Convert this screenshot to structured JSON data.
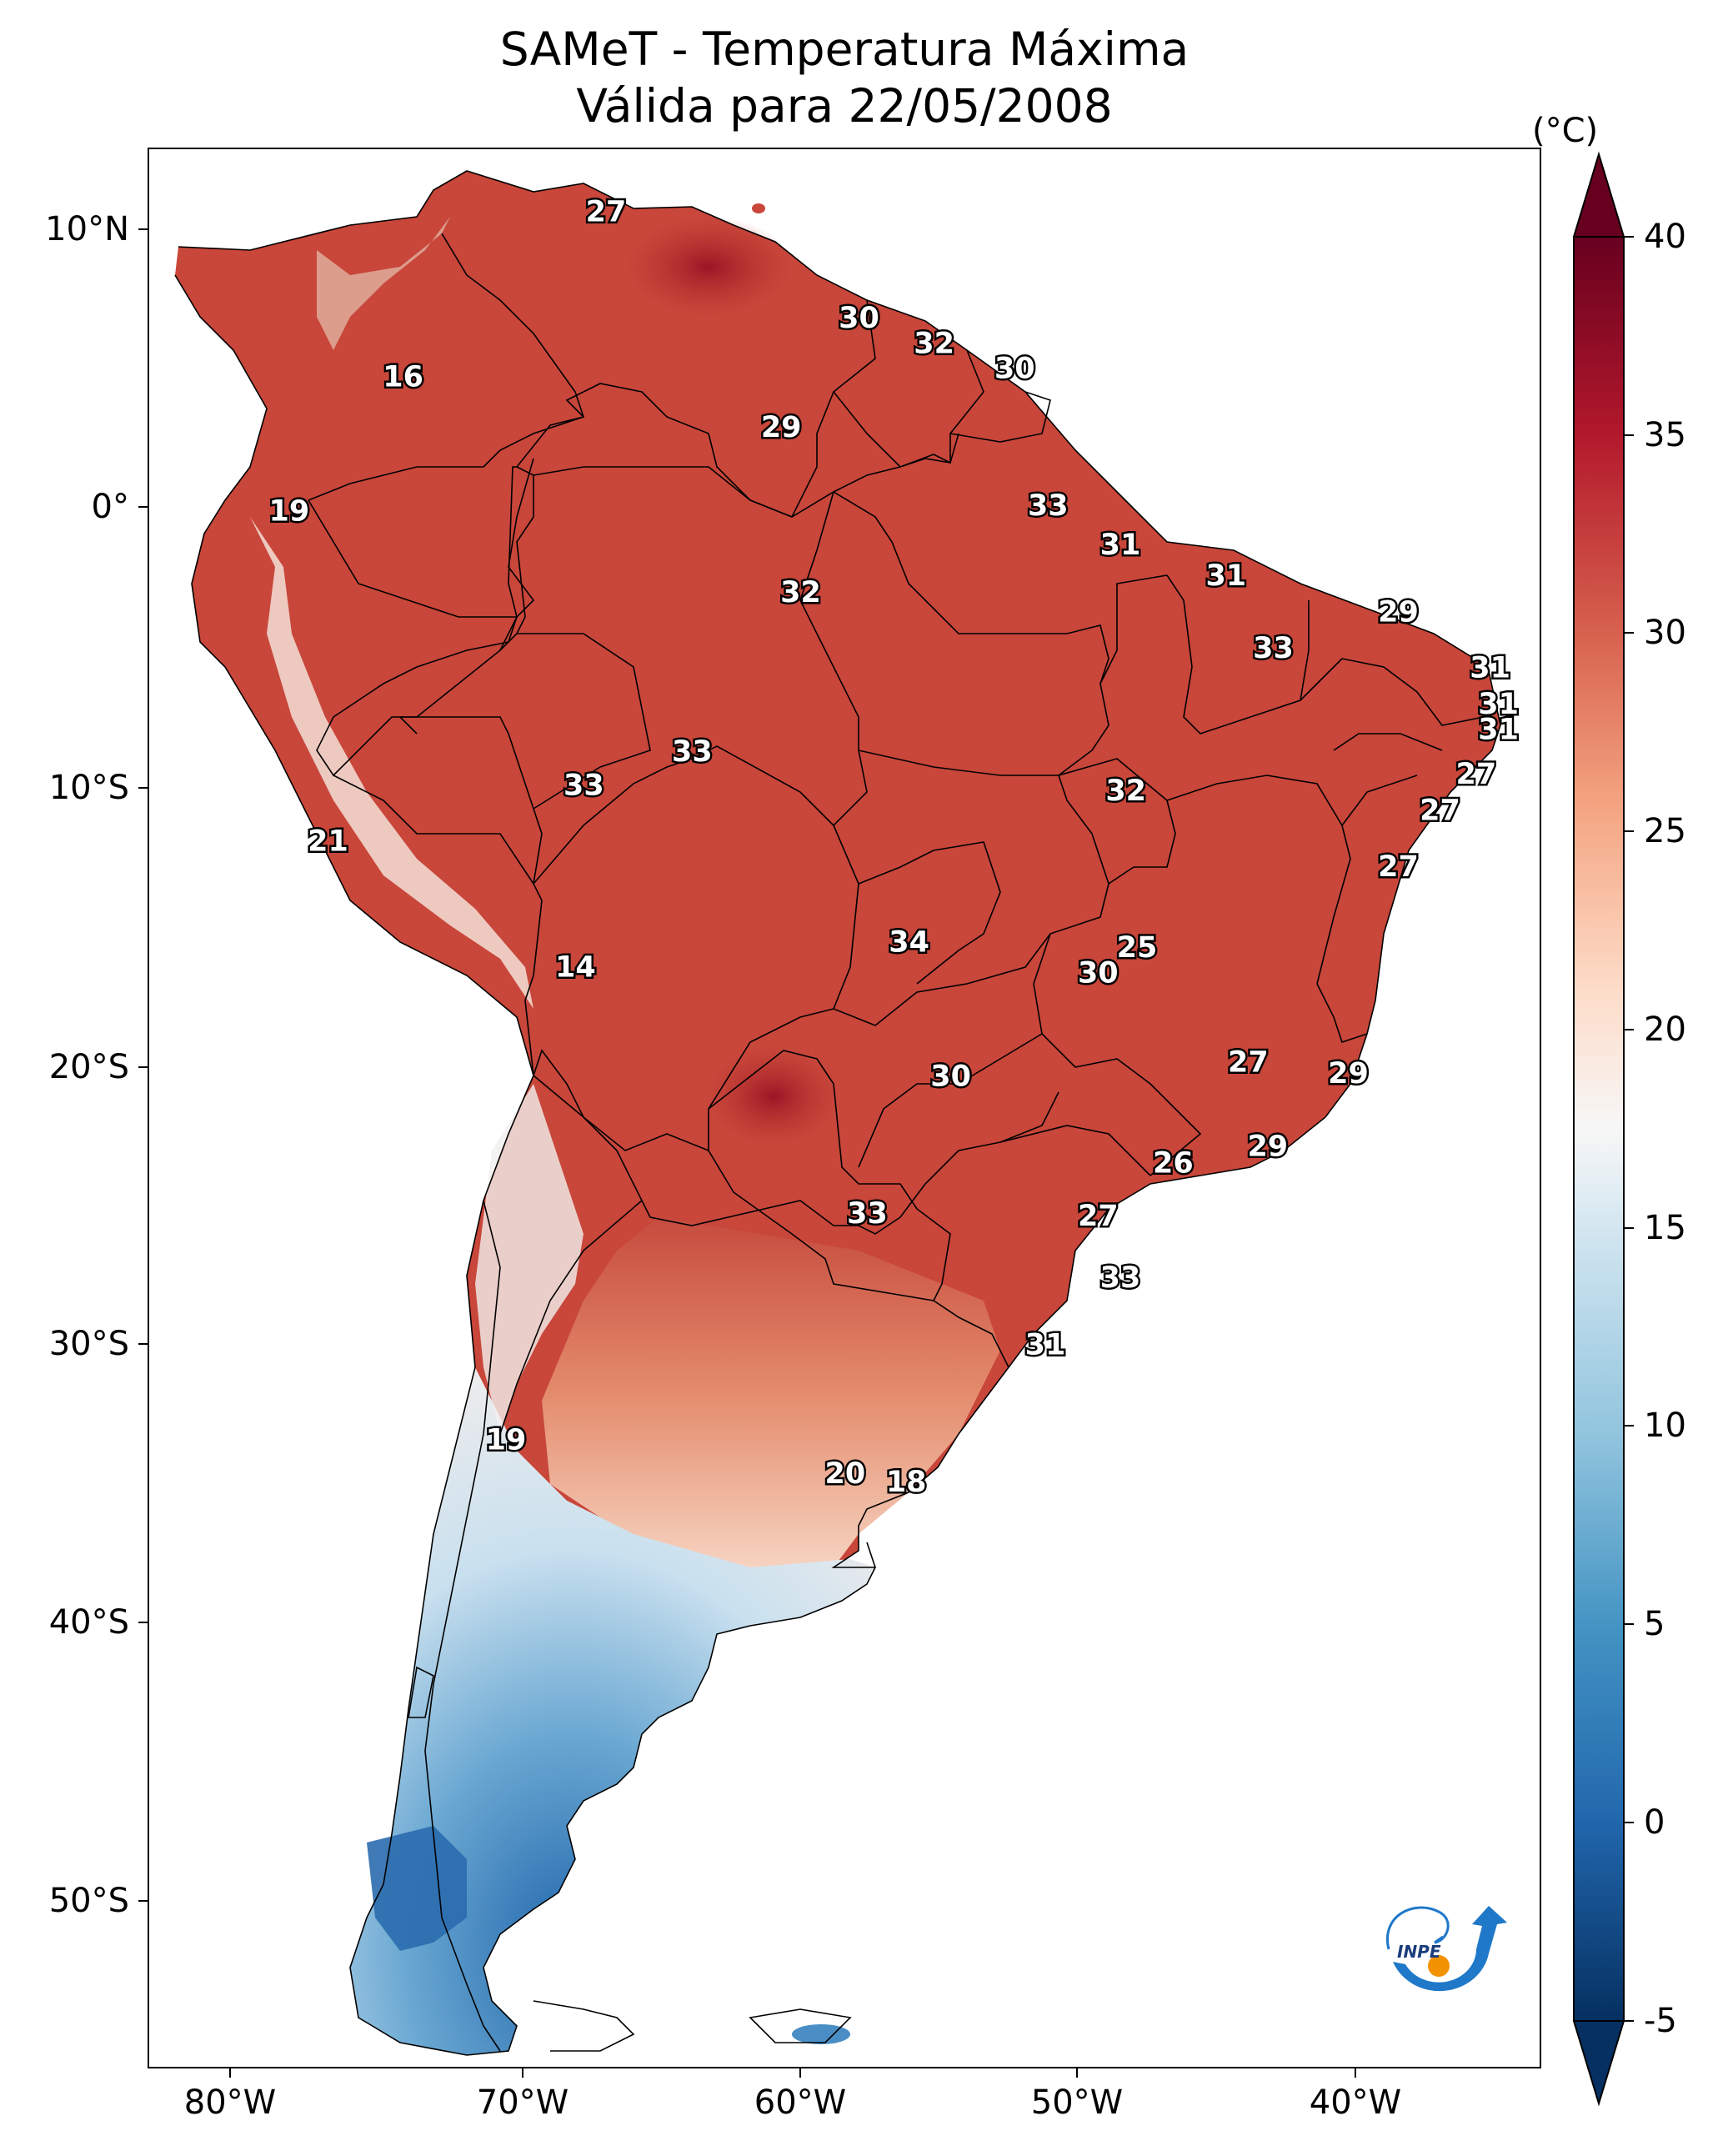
{
  "title": {
    "line1": "SAMeT - Temperatura Máxima",
    "line2": "Válida para 22/05/2008"
  },
  "latitude_ticks": [
    "10°N",
    "0°",
    "10°S",
    "20°S",
    "30°S",
    "40°S",
    "50°S"
  ],
  "longitude_ticks": [
    "80°W",
    "70°W",
    "60°W",
    "50°W",
    "40°W"
  ],
  "colorbar": {
    "unit": "(°C)",
    "ticks": [
      "40",
      "35",
      "30",
      "25",
      "20",
      "15",
      "10",
      "5",
      "0",
      "-5"
    ],
    "range": [
      -5,
      40
    ],
    "extend": "both",
    "colormap": "RdBu_r",
    "colors": {
      "hot": "#67001f",
      "warm": "#b2182b",
      "mild": "#f4a582",
      "neutral": "#f7f7f7",
      "cool": "#92c5de",
      "cold": "#2166ac",
      "coldest": "#053061"
    }
  },
  "station_labels": [
    {
      "value": "27",
      "lon": -67.0,
      "lat": 10.5
    },
    {
      "value": "16",
      "lon": -74.3,
      "lat": 4.6
    },
    {
      "value": "19",
      "lon": -78.4,
      "lat": -0.2
    },
    {
      "value": "30",
      "lon": -57.9,
      "lat": 6.7
    },
    {
      "value": "32",
      "lon": -55.2,
      "lat": 5.8
    },
    {
      "value": "30",
      "lon": -52.3,
      "lat": 4.9
    },
    {
      "value": "29",
      "lon": -60.7,
      "lat": 2.8
    },
    {
      "value": "33",
      "lon": -51.1,
      "lat": 0.0
    },
    {
      "value": "31",
      "lon": -48.5,
      "lat": -1.4
    },
    {
      "value": "31",
      "lon": -44.7,
      "lat": -2.5
    },
    {
      "value": "32",
      "lon": -60.0,
      "lat": -3.1
    },
    {
      "value": "29",
      "lon": -38.5,
      "lat": -3.8
    },
    {
      "value": "33",
      "lon": -43.0,
      "lat": -5.1
    },
    {
      "value": "31",
      "lon": -35.2,
      "lat": -5.8
    },
    {
      "value": "31",
      "lon": -34.9,
      "lat": -7.1
    },
    {
      "value": "31",
      "lon": -34.9,
      "lat": -8.0
    },
    {
      "value": "27",
      "lon": -35.7,
      "lat": -9.6
    },
    {
      "value": "27",
      "lon": -37.0,
      "lat": -10.9
    },
    {
      "value": "27",
      "lon": -38.5,
      "lat": -12.9
    },
    {
      "value": "33",
      "lon": -63.9,
      "lat": -8.8
    },
    {
      "value": "33",
      "lon": -67.8,
      "lat": -10.0
    },
    {
      "value": "32",
      "lon": -48.3,
      "lat": -10.2
    },
    {
      "value": "21",
      "lon": -77.0,
      "lat": -12.0
    },
    {
      "value": "34",
      "lon": -56.1,
      "lat": -15.6
    },
    {
      "value": "25",
      "lon": -47.9,
      "lat": -15.8
    },
    {
      "value": "30",
      "lon": -49.3,
      "lat": -16.7
    },
    {
      "value": "14",
      "lon": -68.1,
      "lat": -16.5
    },
    {
      "value": "27",
      "lon": -43.9,
      "lat": -19.9
    },
    {
      "value": "29",
      "lon": -40.3,
      "lat": -20.3
    },
    {
      "value": "30",
      "lon": -54.6,
      "lat": -20.4
    },
    {
      "value": "29",
      "lon": -43.2,
      "lat": -22.9
    },
    {
      "value": "26",
      "lon": -46.6,
      "lat": -23.5
    },
    {
      "value": "33",
      "lon": -57.6,
      "lat": -25.3
    },
    {
      "value": "27",
      "lon": -49.3,
      "lat": -25.4
    },
    {
      "value": "33",
      "lon": -48.5,
      "lat": -27.6
    },
    {
      "value": "31",
      "lon": -51.2,
      "lat": -30.0
    },
    {
      "value": "19",
      "lon": -70.6,
      "lat": -33.4
    },
    {
      "value": "20",
      "lon": -58.4,
      "lat": -34.6
    },
    {
      "value": "18",
      "lon": -56.2,
      "lat": -34.9
    }
  ],
  "logo": {
    "text": "INPE"
  }
}
